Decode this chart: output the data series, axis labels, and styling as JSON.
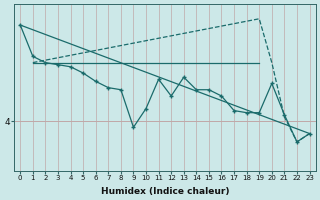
{
  "xlabel": "Humidex (Indice chaleur)",
  "background_color": "#cce8e8",
  "line_color": "#1a6b6b",
  "grid_v_color": "#c0a8a8",
  "grid_h_color": "#c0a8a8",
  "xlim": [
    -0.5,
    23.5
  ],
  "ylim": [
    2.8,
    6.8
  ],
  "ytick_val": 4,
  "xticks": [
    0,
    1,
    2,
    3,
    4,
    5,
    6,
    7,
    8,
    9,
    10,
    11,
    12,
    13,
    14,
    15,
    16,
    17,
    18,
    19,
    20,
    21,
    22,
    23
  ],
  "series_main": {
    "x": [
      0,
      1,
      2,
      3,
      4,
      5,
      6,
      7,
      8,
      9,
      10,
      11,
      12,
      13,
      14,
      15,
      16,
      17,
      18,
      19,
      20,
      21,
      22,
      23
    ],
    "y": [
      6.3,
      5.55,
      5.4,
      5.35,
      5.3,
      5.15,
      4.95,
      4.8,
      4.75,
      3.85,
      4.3,
      5.0,
      4.6,
      5.05,
      4.75,
      4.75,
      4.6,
      4.25,
      4.2,
      4.2,
      4.9,
      4.15,
      3.5,
      3.7
    ]
  },
  "series_flat": {
    "x": [
      1,
      19
    ],
    "y": [
      5.4,
      5.4
    ]
  },
  "series_diagonal": {
    "x": [
      0,
      23
    ],
    "y": [
      6.3,
      3.7
    ]
  },
  "series_triangle": {
    "x": [
      1,
      19,
      20,
      21,
      22,
      23
    ],
    "y": [
      5.4,
      6.45,
      5.4,
      4.1,
      3.5,
      3.7
    ]
  }
}
